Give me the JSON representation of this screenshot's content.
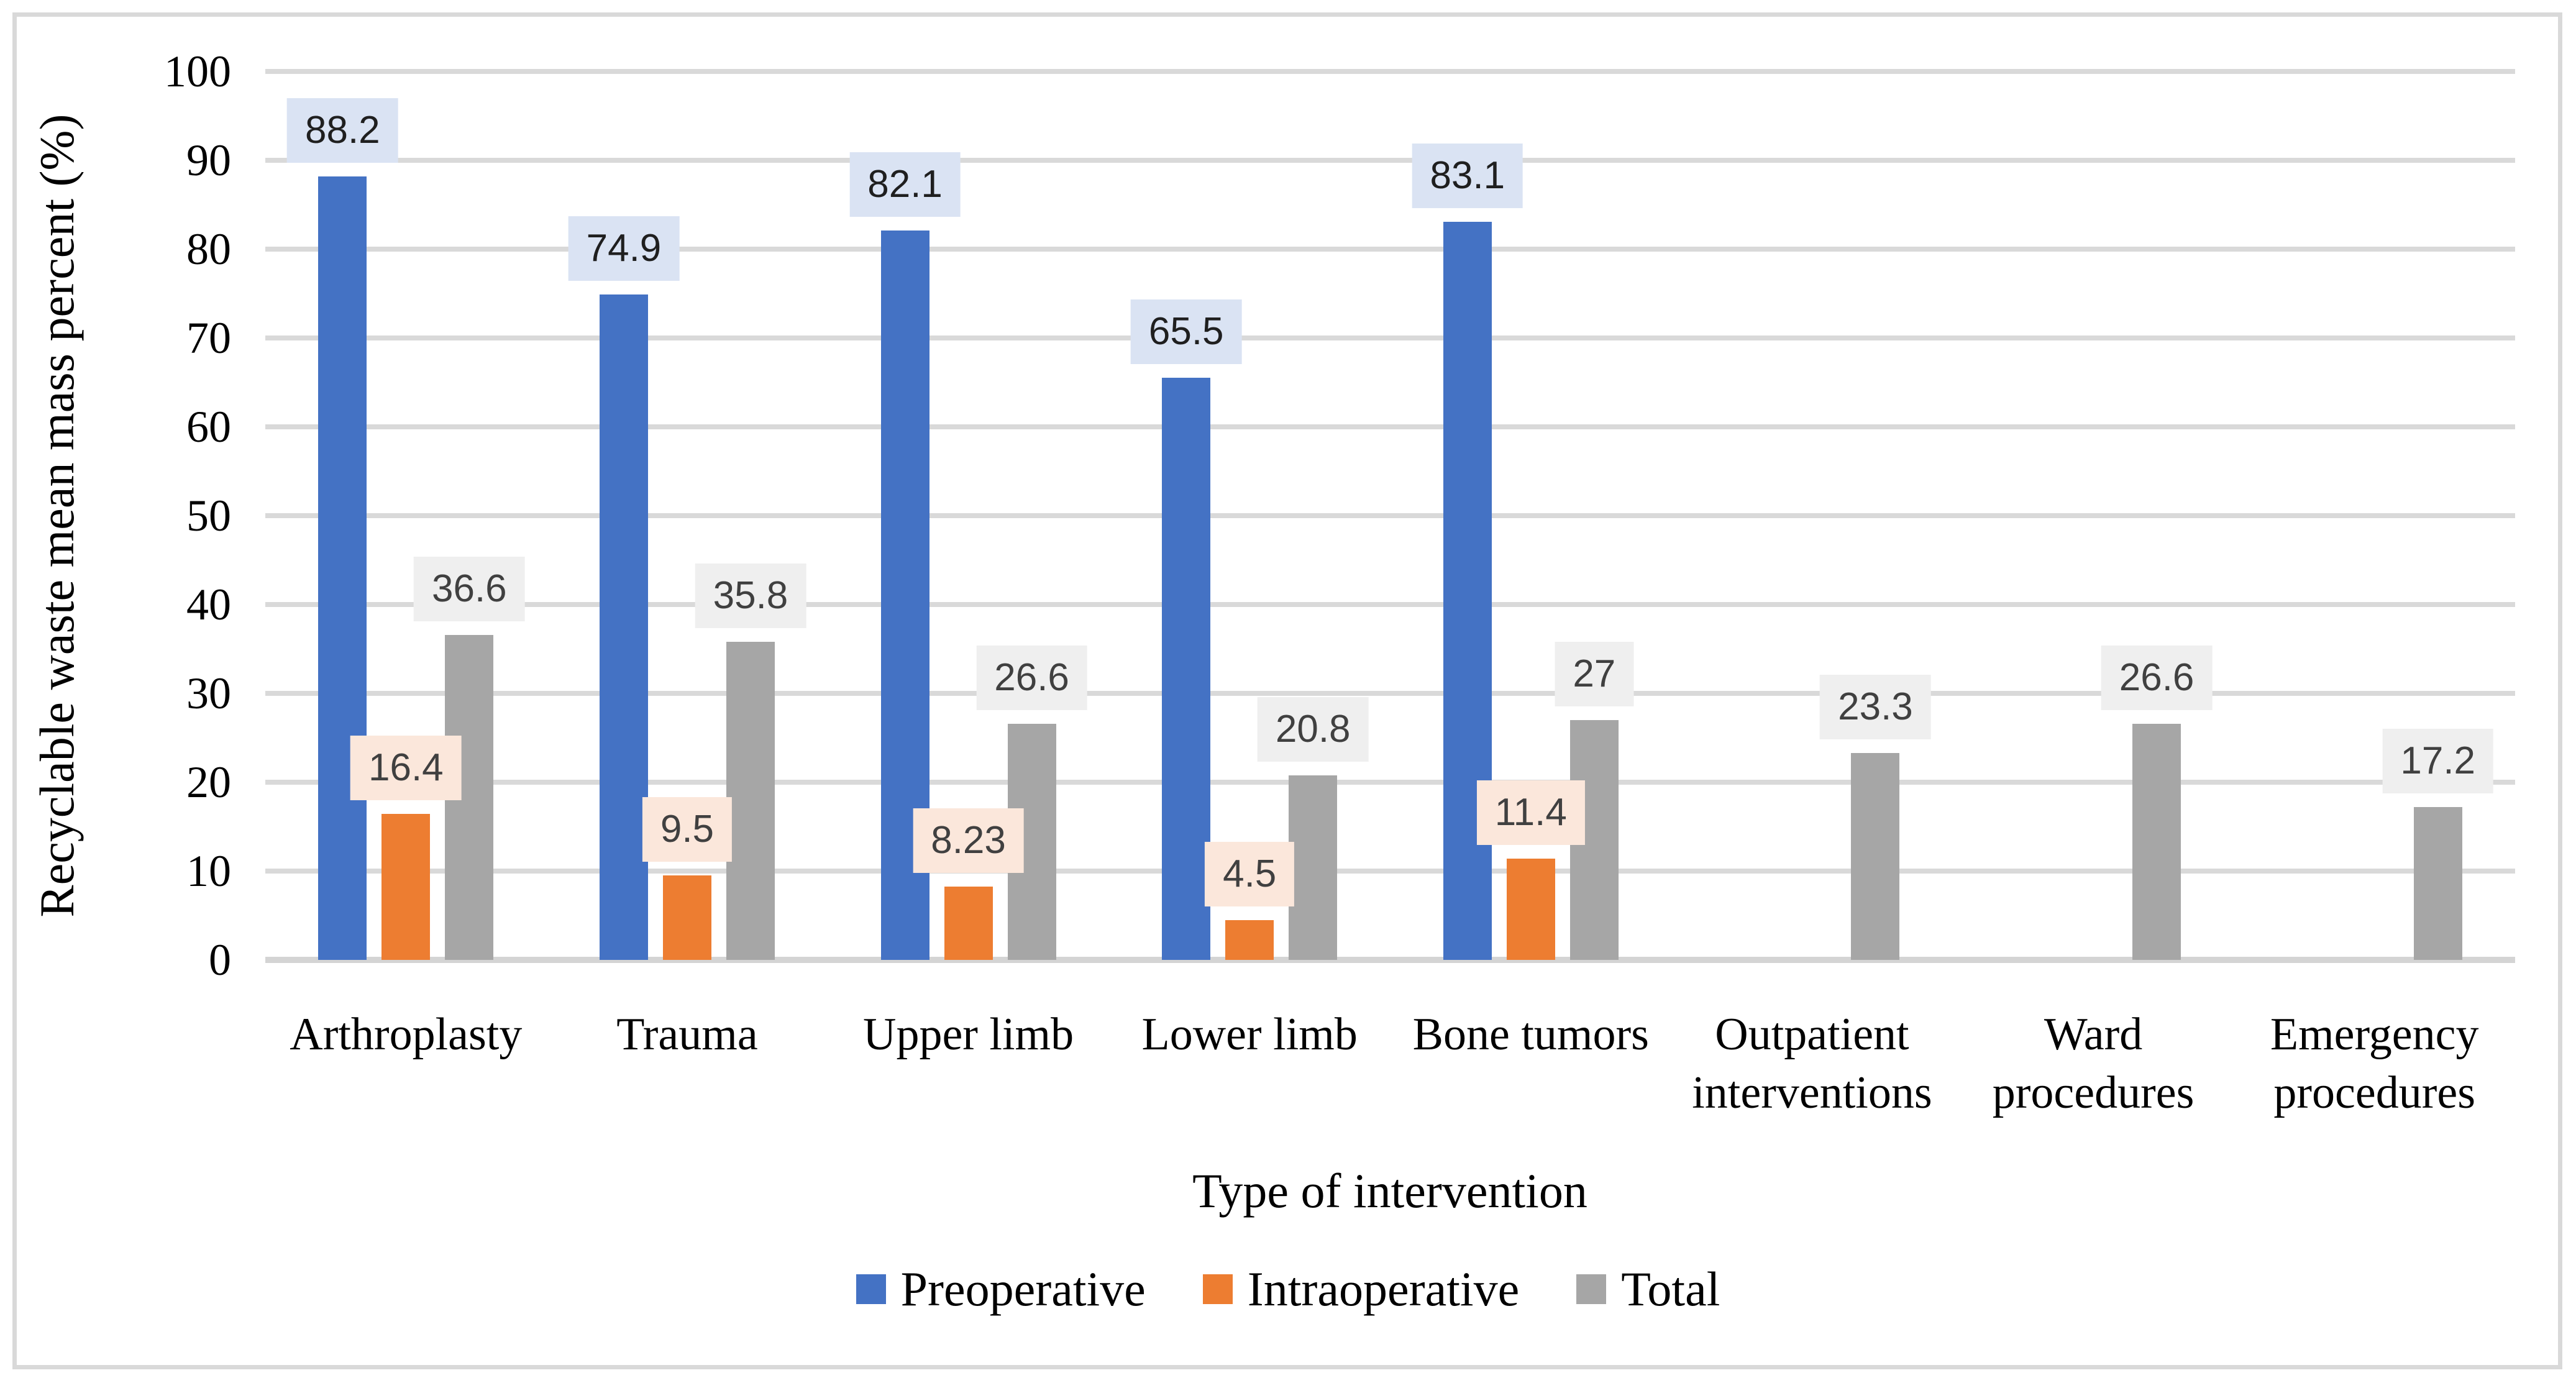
{
  "chart_data": {
    "type": "bar",
    "title": "",
    "xlabel": "Type of intervention",
    "ylabel": "Recyclable waste mean mass percent (%)",
    "ylim": [
      0,
      100
    ],
    "y_tick_step": 10,
    "y_tick_labels": [
      "0",
      "10",
      "20",
      "30",
      "40",
      "50",
      "60",
      "70",
      "80",
      "90",
      "100"
    ],
    "grid": true,
    "legend_position": "bottom",
    "categories": [
      "Arthroplasty",
      "Trauma",
      "Upper limb",
      "Lower limb",
      "Bone tumors",
      "Outpatient interventions",
      "Ward procedures",
      "Emergency procedures"
    ],
    "series": [
      {
        "name": "Preoperative",
        "color": "#4472C4",
        "label_bg": "#DAE3F3",
        "label_color": "#1F1F1F",
        "values": [
          88.2,
          74.9,
          82.1,
          65.5,
          83.1,
          null,
          null,
          null
        ],
        "labels": [
          "88.2",
          "74.9",
          "82.1",
          "65.5",
          "83.1",
          null,
          null,
          null
        ]
      },
      {
        "name": "Intraoperative",
        "color": "#ED7D31",
        "label_bg": "#FBE7DB",
        "label_color": "#404040",
        "values": [
          16.4,
          9.5,
          8.23,
          4.5,
          11.4,
          null,
          null,
          null
        ],
        "labels": [
          "16.4",
          "9.5",
          "8.23",
          "4.5",
          "11.4",
          null,
          null,
          null
        ]
      },
      {
        "name": "Total",
        "color": "#A6A6A6",
        "label_bg": "#EFEFEF",
        "label_color": "#404040",
        "values": [
          36.6,
          35.8,
          26.6,
          20.8,
          27,
          23.3,
          26.6,
          17.2
        ],
        "labels": [
          "36.6",
          "35.8",
          "26.6",
          "20.8",
          "27",
          "23.3",
          "26.6",
          "17.2"
        ]
      }
    ],
    "colors": {
      "gridline": "#D9D9D9",
      "frame_border": "#D9D9D9",
      "background": "#FFFFFF",
      "axis_text": "#000000"
    }
  }
}
